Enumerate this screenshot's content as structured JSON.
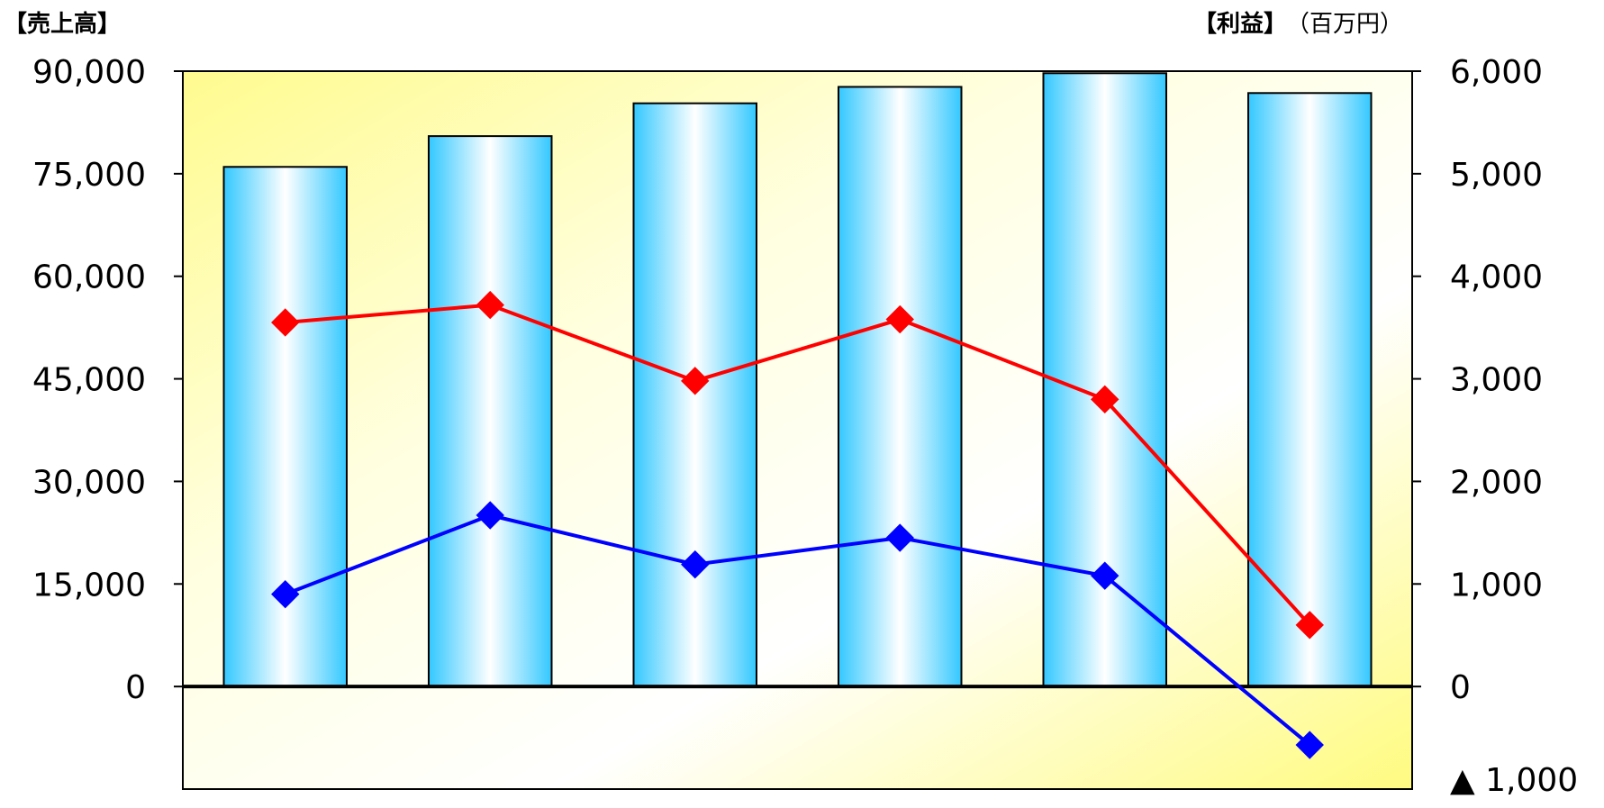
{
  "chart_data": {
    "type": "bar",
    "title": "",
    "left_axis_label": "【売上高】",
    "right_axis_label": "【利益】",
    "right_unit_label": "（百万円）",
    "left_axis": {
      "min": -15000,
      "max": 90000,
      "ticks": [
        0,
        15000,
        30000,
        45000,
        60000,
        75000,
        90000
      ],
      "tick_labels": [
        "0",
        "15,000",
        "30,000",
        "45,000",
        "60,000",
        "75,000",
        "90,000"
      ]
    },
    "right_axis": {
      "min": -1000,
      "max": 6000,
      "ticks": [
        -1000,
        0,
        1000,
        2000,
        3000,
        4000,
        5000,
        6000
      ],
      "tick_labels": [
        "▲ 1,000",
        "0",
        "1,000",
        "2,000",
        "3,000",
        "4,000",
        "5,000",
        "6,000"
      ]
    },
    "categories": [
      "",
      "",
      "",
      "",
      "",
      ""
    ],
    "series": [
      {
        "name": "",
        "type": "bar",
        "axis": "left",
        "values": [
          76000,
          80500,
          85300,
          87700,
          89700,
          86800
        ]
      },
      {
        "name": "",
        "type": "line",
        "axis": "right",
        "color": "#ff0000",
        "values": [
          3550,
          3720,
          2980,
          3580,
          2800,
          600
        ]
      },
      {
        "name": "",
        "type": "line",
        "axis": "right",
        "color": "#0000ff",
        "values": [
          900,
          1670,
          1190,
          1450,
          1080,
          -570
        ]
      }
    ],
    "colors": {
      "bar_edge": "#33c8ff",
      "bar_center": "#ffffff",
      "plot_bg_light": "#ffffc0",
      "plot_bg_strong": "#fffb80"
    }
  }
}
